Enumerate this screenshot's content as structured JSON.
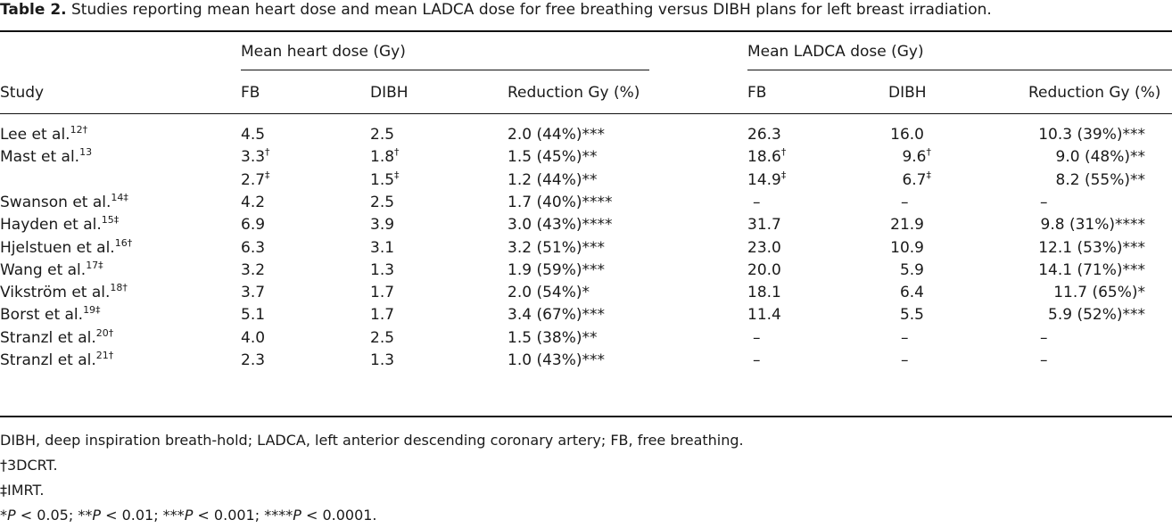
{
  "caption": {
    "label": "Table 2.",
    "text": "Studies reporting mean heart dose and mean LADCA dose for free breathing versus DIBH plans for left breast irradiation."
  },
  "headers": {
    "group_heart": "Mean heart dose (Gy)",
    "group_ladca": "Mean LADCA dose (Gy)",
    "study": "Study",
    "fb": "FB",
    "dibh": "DIBH",
    "reduction": "Reduction Gy (%)"
  },
  "rows": [
    {
      "study": "Lee et al.",
      "ref": "12†",
      "hfb": "4.5",
      "hfb_sup": "",
      "hdibh": "2.5",
      "hdibh_sup": "",
      "hred": "2.0 (44%)***",
      "lfb": "26.3",
      "lfb_sup": "",
      "ldibh": "16.0",
      "ldibh_sup": "",
      "lred": "10.3 (39%)***"
    },
    {
      "study": "Mast et al.",
      "ref": "13",
      "hfb": "3.3",
      "hfb_sup": "†",
      "hdibh": "1.8",
      "hdibh_sup": "†",
      "hred": "1.5 (45%)**",
      "lfb": "18.6",
      "lfb_sup": "†",
      "ldibh": "9.6",
      "ldibh_sup": "†",
      "lred": "9.0 (48%)**"
    },
    {
      "study": "",
      "ref": "",
      "hfb": "2.7",
      "hfb_sup": "‡",
      "hdibh": "1.5",
      "hdibh_sup": "‡",
      "hred": "1.2 (44%)**",
      "lfb": "14.9",
      "lfb_sup": "‡",
      "ldibh": "6.7",
      "ldibh_sup": "‡",
      "lred": "8.2 (55%)**"
    },
    {
      "study": "Swanson et al.",
      "ref": "14‡",
      "hfb": "4.2",
      "hfb_sup": "",
      "hdibh": "2.5",
      "hdibh_sup": "",
      "hred": "1.7 (40%)****",
      "lfb": "–",
      "lfb_sup": "",
      "ldibh": "–",
      "ldibh_sup": "",
      "lred": "–"
    },
    {
      "study": "Hayden et al.",
      "ref": "15‡",
      "hfb": "6.9",
      "hfb_sup": "",
      "hdibh": "3.9",
      "hdibh_sup": "",
      "hred": "3.0 (43%)****",
      "lfb": "31.7",
      "lfb_sup": "",
      "ldibh": "21.9",
      "ldibh_sup": "",
      "lred": "9.8 (31%)****"
    },
    {
      "study": "Hjelstuen et al.",
      "ref": "16†",
      "hfb": "6.3",
      "hfb_sup": "",
      "hdibh": "3.1",
      "hdibh_sup": "",
      "hred": "3.2 (51%)***",
      "lfb": "23.0",
      "lfb_sup": "",
      "ldibh": "10.9",
      "ldibh_sup": "",
      "lred": "12.1 (53%)***"
    },
    {
      "study": "Wang et al.",
      "ref": "17‡",
      "hfb": "3.2",
      "hfb_sup": "",
      "hdibh": "1.3",
      "hdibh_sup": "",
      "hred": "1.9 (59%)***",
      "lfb": "20.0",
      "lfb_sup": "",
      "ldibh": "5.9",
      "ldibh_sup": "",
      "lred": "14.1 (71%)***"
    },
    {
      "study": "Vikström et al.",
      "ref": "18†",
      "hfb": "3.7",
      "hfb_sup": "",
      "hdibh": "1.7",
      "hdibh_sup": "",
      "hred": "2.0 (54%)*",
      "lfb": "18.1",
      "lfb_sup": "",
      "ldibh": "6.4",
      "ldibh_sup": "",
      "lred": "11.7 (65%)*"
    },
    {
      "study": "Borst et al.",
      "ref": "19‡",
      "hfb": "5.1",
      "hfb_sup": "",
      "hdibh": "1.7",
      "hdibh_sup": "",
      "hred": "3.4 (67%)***",
      "lfb": "11.4",
      "lfb_sup": "",
      "ldibh": "5.5",
      "ldibh_sup": "",
      "lred": "5.9 (52%)***"
    },
    {
      "study": "Stranzl et al.",
      "ref": "20†",
      "hfb": "4.0",
      "hfb_sup": "",
      "hdibh": "2.5",
      "hdibh_sup": "",
      "hred": "1.5 (38%)**",
      "lfb": "–",
      "lfb_sup": "",
      "ldibh": "–",
      "ldibh_sup": "",
      "lred": "–"
    },
    {
      "study": "Stranzl et al.",
      "ref": "21†",
      "hfb": "2.3",
      "hfb_sup": "",
      "hdibh": "1.3",
      "hdibh_sup": "",
      "hred": "1.0 (43%)***",
      "lfb": "–",
      "lfb_sup": "",
      "ldibh": "–",
      "ldibh_sup": "",
      "lred": "–"
    }
  ],
  "footnotes": {
    "abbrev": "DIBH, deep inspiration breath-hold; LADCA, left anterior descending coronary artery; FB, free breathing.",
    "dagger": "†3DCRT.",
    "ddagger": "‡IMRT.",
    "sig_parts": [
      "*",
      "P",
      " < 0.05; **",
      "P",
      " < 0.01; ***",
      "P",
      " < 0.001; ****",
      "P",
      " < 0.0001."
    ]
  }
}
